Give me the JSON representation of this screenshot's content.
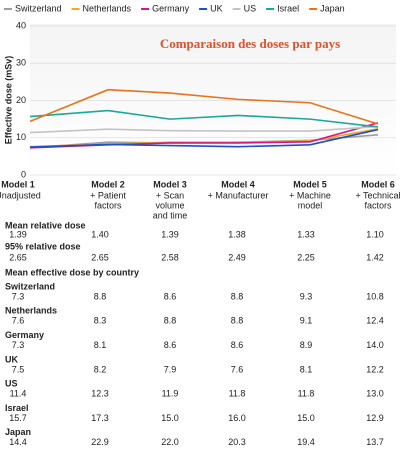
{
  "chart_data": {
    "type": "line",
    "title": "Comparaison des doses par pays",
    "y_label": "Effective dose (mSv)",
    "categories": [
      "Model 1",
      "Model 2",
      "Model 3",
      "Model 4",
      "Model 5",
      "Model 6"
    ],
    "category_notes": [
      [
        "Unadjusted"
      ],
      [
        "+ Patient",
        "factors"
      ],
      [
        "+ Scan",
        "volume",
        "and time"
      ],
      [
        "+ Manufacturer"
      ],
      [
        "+ Machine",
        "model"
      ],
      [
        "+ Technical",
        "factors"
      ]
    ],
    "ylim": [
      0,
      40
    ],
    "yticks": [
      0,
      10,
      20,
      30,
      40
    ],
    "grid": true,
    "series": [
      {
        "name": "Switzerland",
        "color": "#9e9e9e",
        "values": [
          7.3,
          8.8,
          8.6,
          8.8,
          9.3,
          10.8
        ]
      },
      {
        "name": "Netherlands",
        "color": "#f5a623",
        "values": [
          7.6,
          8.3,
          8.8,
          8.8,
          9.1,
          12.4
        ]
      },
      {
        "name": "Germany",
        "color": "#d4148c",
        "values": [
          7.3,
          8.1,
          8.6,
          8.6,
          8.9,
          14.0
        ]
      },
      {
        "name": "UK",
        "color": "#1f4fc1",
        "values": [
          7.5,
          8.2,
          7.9,
          7.6,
          8.1,
          12.2
        ]
      },
      {
        "name": "US",
        "color": "#c4c4c4",
        "values": [
          11.4,
          12.3,
          11.9,
          11.8,
          11.8,
          13.0
        ]
      },
      {
        "name": "Israel",
        "color": "#1aa89a",
        "values": [
          15.7,
          17.3,
          15.0,
          16.0,
          15.0,
          12.9
        ]
      },
      {
        "name": "Japan",
        "color": "#e8731a",
        "values": [
          14.4,
          22.9,
          22.0,
          20.3,
          19.4,
          13.7
        ]
      }
    ]
  },
  "table": {
    "rows": [
      {
        "label": "Mean relative dose",
        "values": [
          "1.39",
          "1.40",
          "1.39",
          "1.38",
          "1.33",
          "1.10"
        ]
      },
      {
        "label": "95% relative dose",
        "values": [
          "2.65",
          "2.65",
          "2.58",
          "2.49",
          "2.25",
          "1.42"
        ]
      }
    ],
    "country_heading": "Mean effective dose by country",
    "countries": [
      {
        "label": "Switzerland",
        "values": [
          "7.3",
          "8.8",
          "8.6",
          "8.8",
          "9.3",
          "10.8"
        ]
      },
      {
        "label": "Netherlands",
        "values": [
          "7.6",
          "8.3",
          "8.8",
          "8.8",
          "9.1",
          "12.4"
        ]
      },
      {
        "label": "Germany",
        "values": [
          "7.3",
          "8.1",
          "8.6",
          "8.6",
          "8.9",
          "14.0"
        ]
      },
      {
        "label": "UK",
        "values": [
          "7.5",
          "8.2",
          "7.9",
          "7.6",
          "8.1",
          "12.2"
        ]
      },
      {
        "label": "US",
        "values": [
          "11.4",
          "12.3",
          "11.9",
          "11.8",
          "11.8",
          "13.0"
        ]
      },
      {
        "label": "Israel",
        "values": [
          "15.7",
          "17.3",
          "15.0",
          "16.0",
          "15.0",
          "12.9"
        ]
      },
      {
        "label": "Japan",
        "values": [
          "14.4",
          "22.9",
          "22.0",
          "20.3",
          "19.4",
          "13.7"
        ]
      }
    ]
  }
}
